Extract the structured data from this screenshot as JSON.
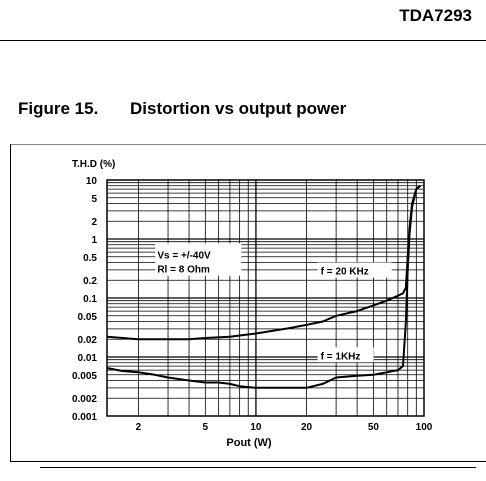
{
  "header": {
    "title": "TDA7293"
  },
  "figure": {
    "number": "Figure 15.",
    "title": "Distortion vs output power"
  },
  "chart_data": {
    "type": "line",
    "x_scale": "log",
    "y_scale": "log",
    "xlim": [
      1.3,
      100
    ],
    "ylim": [
      0.001,
      10
    ],
    "xlabel": "Pout (W)",
    "ylabel": "T.H.D (%)",
    "xticks": [
      2,
      5,
      10,
      20,
      50,
      100
    ],
    "yticks": [
      0.001,
      0.002,
      0.005,
      0.01,
      0.02,
      0.05,
      0.1,
      0.2,
      0.5,
      1,
      2,
      5,
      10
    ],
    "xtick_labels": [
      "2",
      "5",
      "10",
      "20",
      "50",
      "100"
    ],
    "ytick_labels": [
      "0.001",
      "0.002",
      "0.005",
      "0.01",
      "0.02",
      "0.05",
      "0.1",
      "0.2",
      "0.5",
      "1",
      "2",
      "5",
      "10"
    ],
    "grid": true,
    "annotations": [
      {
        "text": "Vs = +/-40V",
        "x": 5.0,
        "y": 0.55
      },
      {
        "text": "Rl = 8 Ohm",
        "x": 5.0,
        "y": 0.29
      },
      {
        "text": "f = 20 KHz",
        "x": 26,
        "y": 0.26
      },
      {
        "text": "f = 1KHz",
        "x": 26,
        "y": 0.0095
      }
    ],
    "series": [
      {
        "name": "f = 20 KHz",
        "x": [
          1.3,
          2,
          3,
          4,
          5,
          7,
          10,
          15,
          20,
          25,
          30,
          40,
          50,
          60,
          70,
          75,
          78,
          80,
          82,
          85,
          90,
          95
        ],
        "y": [
          0.022,
          0.02,
          0.02,
          0.02,
          0.021,
          0.022,
          0.025,
          0.03,
          0.035,
          0.04,
          0.05,
          0.06,
          0.075,
          0.09,
          0.11,
          0.12,
          0.15,
          0.5,
          1.5,
          4,
          7,
          8
        ]
      },
      {
        "name": "f = 1KHz",
        "x": [
          1.3,
          1.6,
          2,
          2.5,
          3,
          4,
          5,
          6,
          7,
          8,
          10,
          12,
          15,
          18,
          20,
          25,
          30,
          40,
          50,
          60,
          70,
          75,
          78,
          80,
          82,
          85,
          90,
          95
        ],
        "y": [
          0.0065,
          0.0058,
          0.0055,
          0.005,
          0.0045,
          0.004,
          0.0037,
          0.0037,
          0.0035,
          0.0032,
          0.003,
          0.003,
          0.003,
          0.003,
          0.003,
          0.0035,
          0.0045,
          0.0048,
          0.005,
          0.0055,
          0.006,
          0.007,
          0.04,
          0.3,
          1.2,
          3.5,
          7,
          8
        ]
      }
    ]
  }
}
